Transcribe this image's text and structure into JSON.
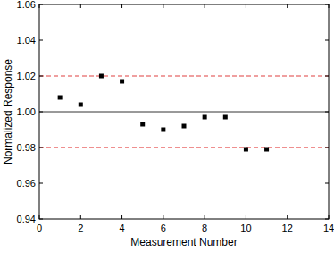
{
  "chart_data": {
    "type": "scatter",
    "x_label": "Measurement Number",
    "y_label": "Normalized Response",
    "x": [
      1,
      2,
      3,
      4,
      5,
      6,
      7,
      8,
      9,
      10,
      11
    ],
    "values": [
      1.008,
      1.004,
      1.02,
      1.017,
      0.993,
      0.99,
      0.992,
      0.997,
      0.997,
      0.979,
      0.979
    ],
    "color": "#000000",
    "marker": "square",
    "xlim": [
      0,
      14
    ],
    "xticks": [
      0,
      2,
      4,
      6,
      8,
      10,
      12,
      14
    ],
    "ylim": [
      0.94,
      1.06
    ],
    "yticks": [
      0.94,
      0.96,
      0.98,
      {
        "value": 1.0,
        "label": "1.00"
      },
      1.02,
      1.04,
      1.06
    ],
    "reference_lines": [
      {
        "value": 1.02,
        "color": "#e04040",
        "line_style": "dashed"
      },
      {
        "value": 1.0,
        "color": "#000000",
        "line_style": "solid"
      },
      {
        "value": 0.98,
        "color": "#e02020",
        "line_style": "dashed"
      }
    ],
    "grid": false
  }
}
